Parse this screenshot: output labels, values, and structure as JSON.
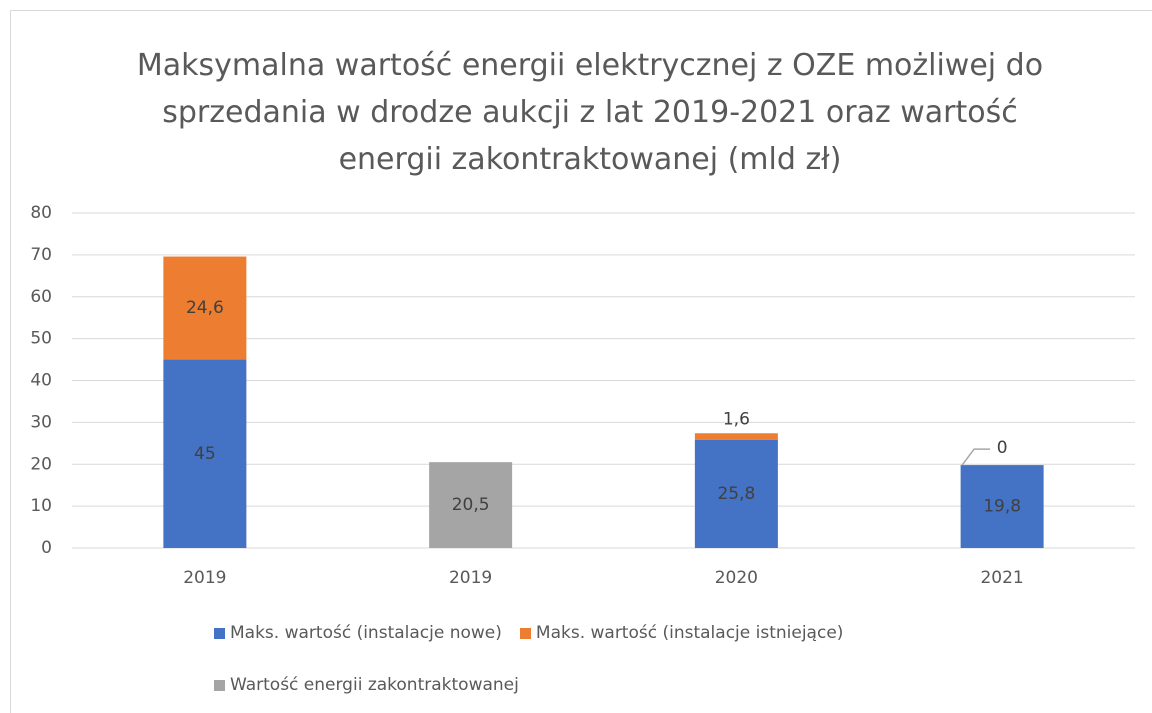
{
  "chart_data": {
    "type": "stacked-bar",
    "title": "Maksymalna wartość energii elektrycznej z OZE możliwej do sprzedania w drodze aukcji z lat 2019-2021 oraz wartość energii zakontraktowanej (mld zł)",
    "categories": [
      "2019",
      "2019",
      "2020",
      "2021"
    ],
    "series": [
      {
        "name": "Maks. wartość (instalacje nowe)",
        "color": "#4472c4",
        "values": [
          45,
          null,
          25.8,
          19.8
        ],
        "value_labels": [
          "45",
          null,
          "25,8",
          "19,8"
        ]
      },
      {
        "name": "Maks. wartość (instalacje istniejące)",
        "color": "#ed7d31",
        "values": [
          24.6,
          null,
          1.6,
          0
        ],
        "value_labels": [
          "24,6",
          null,
          "1,6",
          "0"
        ]
      },
      {
        "name": "Wartość energii zakontraktowanej",
        "color": "#a5a5a5",
        "values": [
          null,
          20.5,
          null,
          null
        ],
        "value_labels": [
          null,
          "20,5",
          null,
          null
        ]
      }
    ],
    "ylim": [
      0,
      80
    ],
    "yticks": [
      0,
      10,
      20,
      30,
      40,
      50,
      60,
      70,
      80
    ],
    "grid": true,
    "legend": "bottom"
  }
}
